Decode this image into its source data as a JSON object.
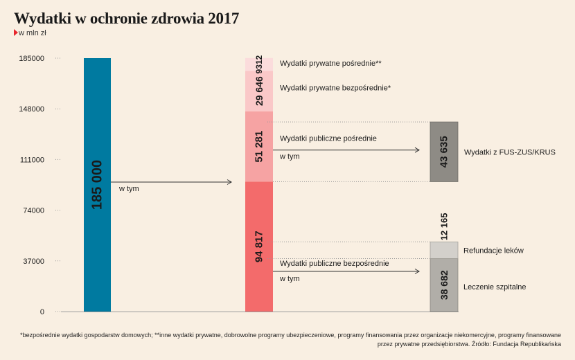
{
  "title": "Wydatki w ochronie zdrowia 2017",
  "unit": "w mln zł",
  "footnote": "*bezpośrednie wydatki gospodarstw domowych; **inne wydatki prywatne, dobrowolne programy ubezpieczeniowe, programy finansowania przez organizacje niekomercyjne, programy finansowane przez prywatne przedsiębiorstwa. Źródło: Fundacja Republikańska",
  "colors": {
    "total": "#007aa0",
    "private_indirect": "#fbdcdc",
    "private_direct": "#fac8c8",
    "public_indirect": "#f6a3a3",
    "public_direct": "#f36b6b",
    "fus": "#8e8b85",
    "refunds": "#d3d0cb",
    "hospital": "#b1aea8"
  },
  "chart_data": {
    "type": "bar",
    "ylim": [
      0,
      185000
    ],
    "yticks": [
      "0",
      "37000",
      "74000",
      "111000",
      "148000",
      "185000"
    ],
    "total": {
      "value": 185000,
      "label": "185 000"
    },
    "stack": [
      {
        "value": 94817,
        "label": "94 817",
        "name": "Wydatki publiczne bezpośrednie"
      },
      {
        "value": 51281,
        "label": "51 281",
        "name": "Wydatki publiczne pośrednie"
      },
      {
        "value": 29646,
        "label": "29 646",
        "name": "Wydatki prywatne bezpośrednie*"
      },
      {
        "value": 9312,
        "label": "9312",
        "name": "Wydatki prywatne pośrednie**"
      }
    ],
    "indirect_breakdown": [
      {
        "value": 43635,
        "label": "43 635",
        "name": "Wydatki z FUS-ZUS/KRUS"
      }
    ],
    "direct_breakdown": [
      {
        "value": 38682,
        "label": "38 682",
        "name": "Leczenie szpitalne"
      },
      {
        "value": 12165,
        "label": "12 165",
        "name": "Refundacje leków"
      }
    ],
    "annotations": {
      "w_tym": "w tym"
    }
  }
}
